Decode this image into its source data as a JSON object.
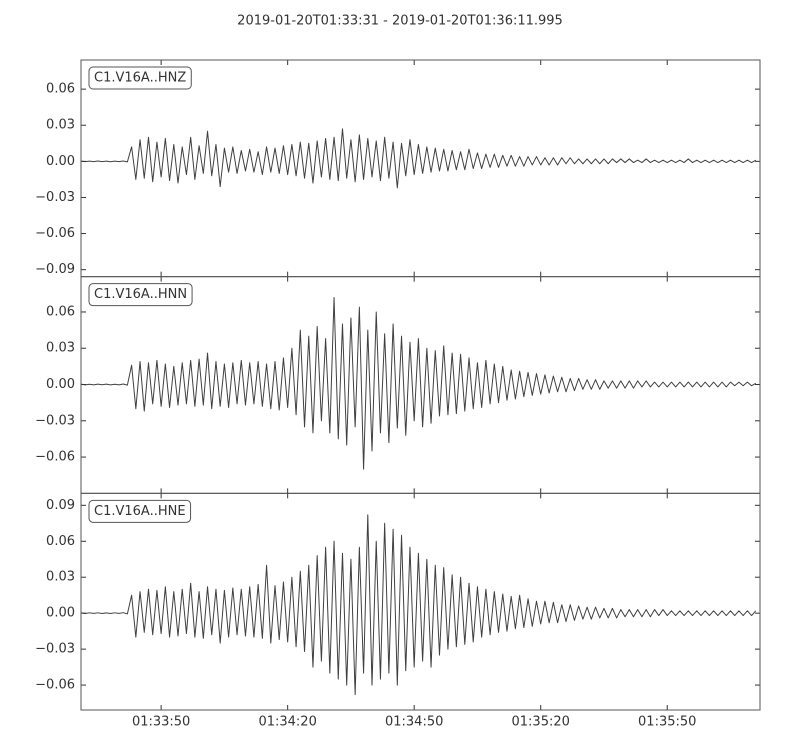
{
  "chart_data": {
    "type": "line",
    "title": "2019-01-20T01:33:31  -  2019-01-20T01:36:11.995",
    "xlim": [
      0,
      160.995
    ],
    "xticks": [
      {
        "value": 19,
        "label": "01:33:50"
      },
      {
        "value": 49,
        "label": "01:34:20"
      },
      {
        "value": 79,
        "label": "01:34:50"
      },
      {
        "value": 109,
        "label": "01:35:20"
      },
      {
        "value": 139,
        "label": "01:35:50"
      }
    ],
    "x": [
      0,
      1,
      2,
      3,
      4,
      5,
      6,
      7,
      8,
      9,
      10,
      11,
      12,
      13,
      14,
      15,
      16,
      17,
      18,
      19,
      20,
      21,
      22,
      23,
      24,
      25,
      26,
      27,
      28,
      29,
      30,
      31,
      32,
      33,
      34,
      35,
      36,
      37,
      38,
      39,
      40,
      41,
      42,
      43,
      44,
      45,
      46,
      47,
      48,
      49,
      50,
      51,
      52,
      53,
      54,
      55,
      56,
      57,
      58,
      59,
      60,
      61,
      62,
      63,
      64,
      65,
      66,
      67,
      68,
      69,
      70,
      71,
      72,
      73,
      74,
      75,
      76,
      77,
      78,
      79,
      80,
      81,
      82,
      83,
      84,
      85,
      86,
      87,
      88,
      89,
      90,
      91,
      92,
      93,
      94,
      95,
      96,
      97,
      98,
      99,
      100,
      101,
      102,
      103,
      104,
      105,
      106,
      107,
      108,
      109,
      110,
      111,
      112,
      113,
      114,
      115,
      116,
      117,
      118,
      119,
      120,
      121,
      122,
      123,
      124,
      125,
      126,
      127,
      128,
      129,
      130,
      131,
      132,
      133,
      134,
      135,
      136,
      137,
      138,
      139,
      140,
      141,
      142,
      143,
      144,
      145,
      146,
      147,
      148,
      149,
      150,
      151,
      152,
      153,
      154,
      155,
      156,
      157,
      158,
      159,
      160
    ],
    "series": [
      {
        "name": "C1.V16A..HNZ",
        "color": "#404040",
        "ylim": [
          -0.0958,
          0.0842
        ],
        "yticks": [
          {
            "value": -0.09,
            "label": "−0.09"
          },
          {
            "value": -0.06,
            "label": "−0.06"
          },
          {
            "value": -0.03,
            "label": "−0.03"
          },
          {
            "value": 0,
            "label": "0.00"
          },
          0.03,
          0.06
        ],
        "values": [
          0.0002,
          -0.0002,
          0.0002,
          -0.0002,
          0.0003,
          -0.0002,
          0.0002,
          -0.0003,
          0.0002,
          -0.0002,
          0.0003,
          -0.0004,
          0.012,
          -0.015,
          0.018,
          -0.014,
          0.02,
          -0.017,
          0.016,
          -0.013,
          0.019,
          -0.016,
          0.014,
          -0.018,
          0.012,
          -0.011,
          0.02,
          -0.015,
          0.013,
          -0.01,
          0.025,
          -0.012,
          0.014,
          -0.021,
          0.011,
          -0.009,
          0.012,
          -0.01,
          0.009,
          -0.008,
          0.01,
          -0.009,
          0.008,
          -0.011,
          0.012,
          -0.009,
          0.011,
          -0.01,
          0.013,
          -0.011,
          0.014,
          -0.012,
          0.016,
          -0.014,
          0.015,
          -0.018,
          0.017,
          -0.013,
          0.019,
          -0.015,
          0.02,
          -0.016,
          0.027,
          -0.014,
          0.018,
          -0.017,
          0.022,
          -0.015,
          0.019,
          -0.013,
          0.017,
          -0.016,
          0.02,
          -0.014,
          0.016,
          -0.022,
          0.015,
          -0.012,
          0.018,
          -0.011,
          0.014,
          -0.01,
          0.012,
          -0.009,
          0.011,
          -0.008,
          0.01,
          -0.008,
          0.009,
          -0.007,
          0.008,
          -0.007,
          0.01,
          -0.006,
          0.007,
          -0.006,
          0.006,
          -0.005,
          0.006,
          -0.005,
          0.005,
          -0.004,
          0.005,
          -0.004,
          0.004,
          -0.004,
          0.004,
          -0.003,
          0.004,
          -0.003,
          0.003,
          -0.003,
          0.003,
          -0.003,
          0.003,
          -0.002,
          0.003,
          -0.002,
          0.002,
          -0.002,
          0.002,
          -0.002,
          0.002,
          -0.002,
          0.002,
          -0.002,
          0.002,
          -0.001,
          0.002,
          -0.001,
          0.002,
          -0.001,
          0.001,
          -0.001,
          0.002,
          -0.001,
          0.001,
          -0.001,
          0.001,
          -0.001,
          0.001,
          -0.001,
          0.001,
          -0.001,
          0.002,
          -0.001,
          0.001,
          -0.001,
          0.001,
          -0.001,
          0.001,
          -0.001,
          0.001,
          -0.001,
          0.001,
          -0.001,
          0.001,
          -0.001,
          0.001,
          -0.001,
          0.001
        ]
      },
      {
        "name": "C1.V16A..HNN",
        "color": "#404040",
        "ylim": [
          -0.09,
          0.0892
        ],
        "yticks": [
          {
            "value": -0.06,
            "label": "−0.06"
          },
          {
            "value": -0.03,
            "label": "−0.03"
          },
          {
            "value": 0,
            "label": "0.00"
          },
          0.03,
          0.06
        ],
        "values": [
          0.0003,
          -0.0003,
          0.0002,
          -0.0003,
          0.0003,
          -0.0002,
          0.0003,
          -0.0003,
          0.0002,
          -0.0003,
          0.0004,
          -0.0005,
          0.016,
          -0.02,
          0.019,
          -0.022,
          0.018,
          -0.016,
          0.02,
          -0.018,
          0.017,
          -0.019,
          0.015,
          -0.017,
          0.018,
          -0.016,
          0.02,
          -0.018,
          0.021,
          -0.017,
          0.026,
          -0.02,
          0.019,
          -0.018,
          0.017,
          -0.019,
          0.018,
          -0.016,
          0.02,
          -0.017,
          0.018,
          -0.016,
          0.019,
          -0.018,
          0.017,
          -0.02,
          0.019,
          -0.021,
          0.022,
          -0.019,
          0.03,
          -0.025,
          0.045,
          -0.035,
          0.04,
          -0.04,
          0.048,
          -0.03,
          0.038,
          -0.04,
          0.072,
          -0.045,
          0.05,
          -0.05,
          0.055,
          -0.035,
          0.064,
          -0.07,
          0.045,
          -0.055,
          0.06,
          -0.04,
          0.042,
          -0.048,
          0.05,
          -0.036,
          0.04,
          -0.042,
          0.035,
          -0.03,
          0.038,
          -0.035,
          0.03,
          -0.032,
          0.028,
          -0.026,
          0.032,
          -0.025,
          0.026,
          -0.024,
          0.025,
          -0.022,
          0.022,
          -0.02,
          0.018,
          -0.019,
          0.02,
          -0.016,
          0.017,
          -0.015,
          0.015,
          -0.013,
          0.012,
          -0.012,
          0.011,
          -0.01,
          0.01,
          -0.009,
          0.009,
          -0.008,
          0.008,
          -0.007,
          0.007,
          -0.006,
          0.006,
          -0.006,
          0.005,
          -0.005,
          0.005,
          -0.004,
          0.004,
          -0.004,
          0.004,
          -0.004,
          0.003,
          -0.003,
          0.003,
          -0.003,
          0.003,
          -0.003,
          0.003,
          -0.003,
          0.003,
          -0.002,
          0.003,
          -0.002,
          0.002,
          -0.002,
          0.002,
          -0.002,
          0.002,
          -0.002,
          0.002,
          -0.002,
          0.002,
          -0.002,
          0.002,
          -0.002,
          0.002,
          -0.002,
          0.002,
          -0.002,
          0.002,
          -0.002,
          0.002,
          -0.001,
          0.002,
          -0.001,
          0.002,
          -0.001,
          0.001
        ]
      },
      {
        "name": "C1.V16A..HNE",
        "color": "#404040",
        "ylim": [
          -0.0808,
          0.1
        ],
        "yticks": [
          {
            "value": -0.06,
            "label": "−0.06"
          },
          {
            "value": -0.03,
            "label": "−0.03"
          },
          {
            "value": 0,
            "label": "0.00"
          },
          0.03,
          0.06,
          0.09
        ],
        "values": [
          0.0003,
          -0.0003,
          0.0003,
          -0.0002,
          0.0003,
          -0.0003,
          0.0002,
          -0.0003,
          0.0003,
          -0.0002,
          0.0004,
          -0.0006,
          0.015,
          -0.02,
          0.018,
          -0.016,
          0.02,
          -0.018,
          0.019,
          -0.017,
          0.022,
          -0.02,
          0.018,
          -0.019,
          0.02,
          -0.017,
          0.025,
          -0.02,
          0.018,
          -0.021,
          0.022,
          -0.018,
          0.02,
          -0.025,
          0.019,
          -0.02,
          0.021,
          -0.018,
          0.02,
          -0.019,
          0.022,
          -0.02,
          0.024,
          -0.021,
          0.04,
          -0.025,
          0.023,
          -0.022,
          0.026,
          -0.024,
          0.03,
          -0.028,
          0.035,
          -0.032,
          0.04,
          -0.045,
          0.048,
          -0.04,
          0.055,
          -0.05,
          0.06,
          -0.055,
          0.05,
          -0.06,
          0.045,
          -0.068,
          0.055,
          -0.05,
          0.082,
          -0.06,
          0.06,
          -0.055,
          0.075,
          -0.05,
          0.07,
          -0.06,
          0.065,
          -0.048,
          0.055,
          -0.045,
          0.05,
          -0.04,
          0.045,
          -0.045,
          0.04,
          -0.035,
          0.038,
          -0.03,
          0.032,
          -0.028,
          0.03,
          -0.026,
          0.025,
          -0.024,
          0.022,
          -0.02,
          0.02,
          -0.018,
          0.018,
          -0.016,
          0.016,
          -0.015,
          0.014,
          -0.013,
          0.015,
          -0.012,
          0.012,
          -0.011,
          0.01,
          -0.009,
          0.01,
          -0.008,
          0.009,
          -0.008,
          0.007,
          -0.007,
          0.007,
          -0.006,
          0.006,
          -0.005,
          0.005,
          -0.005,
          0.005,
          -0.004,
          0.004,
          -0.004,
          0.004,
          -0.004,
          0.003,
          -0.003,
          0.003,
          -0.003,
          0.003,
          -0.003,
          0.003,
          -0.003,
          0.003,
          -0.002,
          0.003,
          -0.002,
          0.002,
          -0.002,
          0.002,
          -0.002,
          0.002,
          -0.002,
          0.002,
          -0.002,
          0.002,
          -0.002,
          0.002,
          -0.002,
          0.002,
          -0.002,
          0.002,
          -0.002,
          0.002,
          -0.002,
          0.002,
          -0.002,
          0.002
        ]
      }
    ]
  }
}
